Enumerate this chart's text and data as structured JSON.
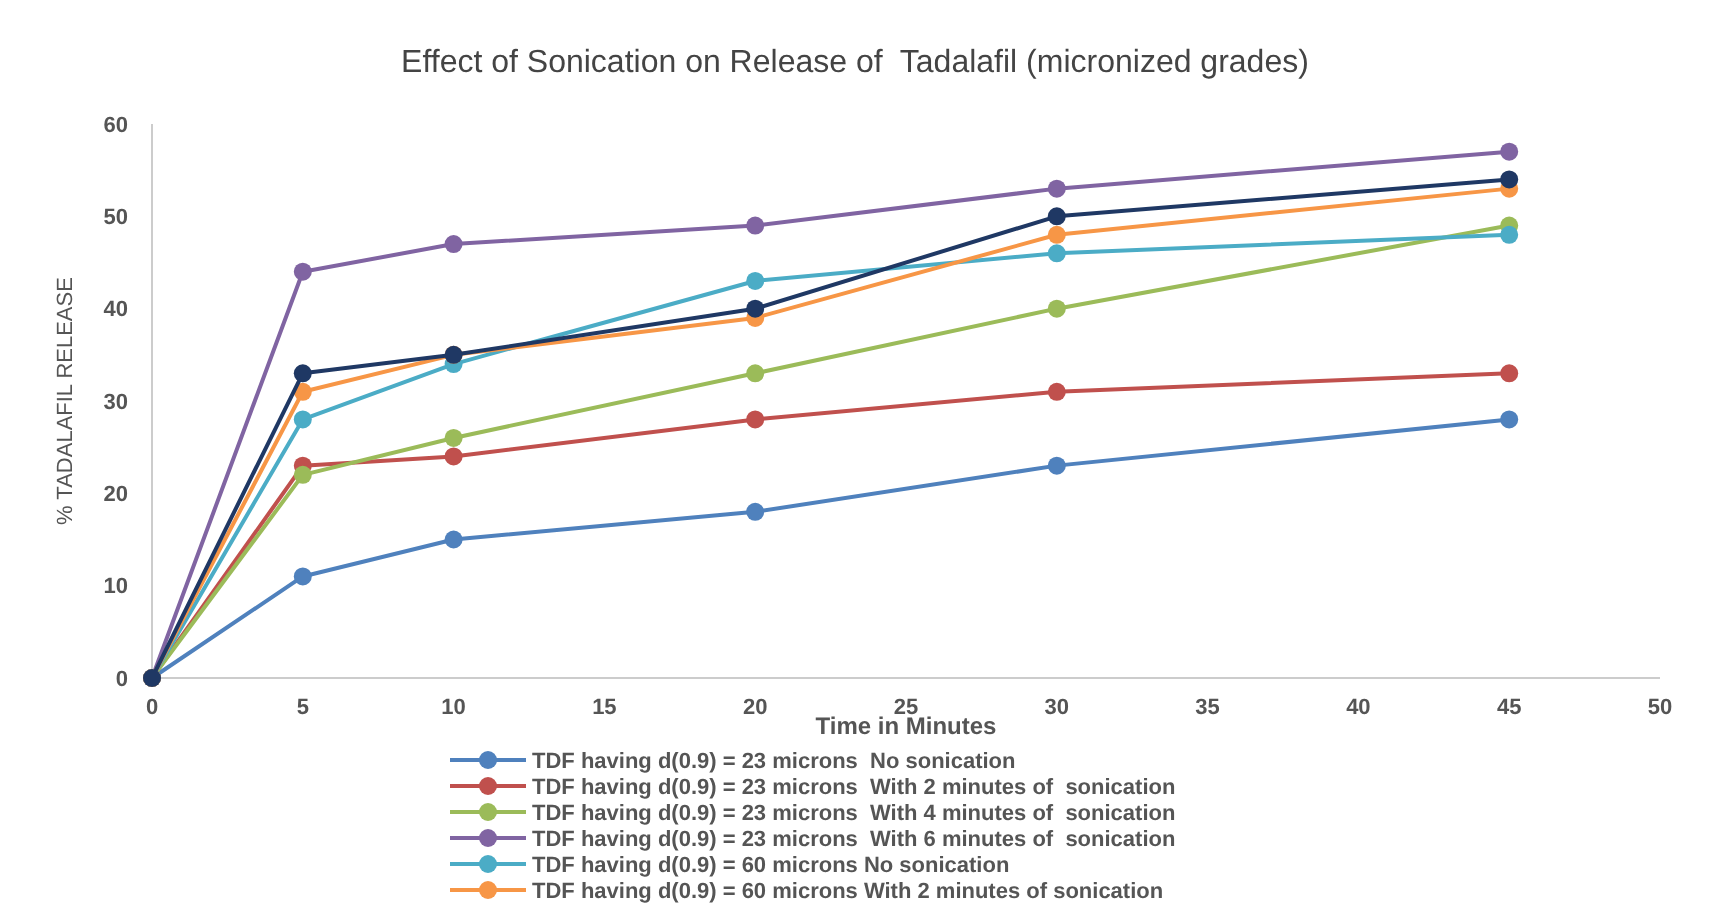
{
  "chart_data": {
    "type": "line",
    "title": "Effect of Sonication on Release of  Tadalafil (micronized grades)",
    "xlabel": "Time in Minutes",
    "ylabel": "% TADALAFIL RELEASE",
    "x": [
      0,
      5,
      10,
      20,
      30,
      45
    ],
    "series": [
      {
        "name": "TDF having d(0.9) = 23 microns  No sonication",
        "color": "#4f81bd",
        "values": [
          0,
          11,
          15,
          18,
          23,
          28
        ]
      },
      {
        "name": "TDF having d(0.9) = 23 microns  With 2 minutes of  sonication",
        "color": "#c0504d",
        "values": [
          0,
          23,
          24,
          28,
          31,
          33
        ]
      },
      {
        "name": "TDF having d(0.9) = 23 microns  With 4 minutes of  sonication",
        "color": "#9bbb59",
        "values": [
          0,
          22,
          26,
          33,
          40,
          49
        ]
      },
      {
        "name": "TDF having d(0.9) = 23 microns  With 6 minutes of  sonication",
        "color": "#8064a2",
        "values": [
          0,
          44,
          47,
          49,
          53,
          57
        ]
      },
      {
        "name": "TDF having d(0.9) = 60 microns No sonication",
        "color": "#4bacc6",
        "values": [
          0,
          28,
          34,
          43,
          46,
          48
        ]
      },
      {
        "name": "TDF having d(0.9) = 60 microns With 2 minutes of sonication",
        "color": "#f79646",
        "values": [
          0,
          31,
          35,
          39,
          48,
          53
        ]
      },
      {
        "color": "#1f3864",
        "values": [
          0,
          33,
          35,
          40,
          50,
          54
        ]
      }
    ],
    "xlim": [
      0,
      50
    ],
    "xticks": [
      0,
      5,
      10,
      15,
      20,
      25,
      30,
      35,
      40,
      45,
      50
    ],
    "ylim": [
      0,
      60
    ],
    "yticks": [
      0,
      10,
      20,
      30,
      40,
      50,
      60
    ],
    "grid": false,
    "legend": "bottom",
    "marker": "circle",
    "line_style": "solid"
  }
}
